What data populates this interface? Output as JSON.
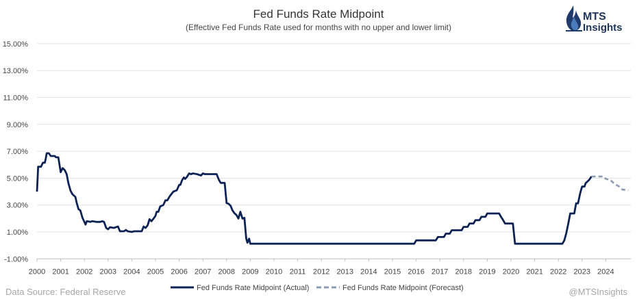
{
  "brand": {
    "line1": "MTS",
    "line2": "Insights",
    "accent": "#1f3a6b"
  },
  "footer": {
    "source": "Data Source: Federal Reserve",
    "handle": "@MTSInsights"
  },
  "chart_data": {
    "type": "line",
    "title": "Fed Funds Rate Midpoint",
    "subtitle": "(Effective Fed Funds Rate used for months with no upper and lower limit)",
    "xlabel": "",
    "ylabel": "",
    "x_ticks": [
      "2000",
      "2001",
      "2002",
      "2003",
      "2004",
      "2005",
      "2006",
      "2007",
      "2008",
      "2009",
      "2010",
      "2011",
      "2012",
      "2013",
      "2014",
      "2015",
      "2016",
      "2017",
      "2018",
      "2019",
      "2020",
      "2021",
      "2022",
      "2023",
      "2024"
    ],
    "y_ticks": [
      "15.00%",
      "13.00%",
      "11.00%",
      "9.00%",
      "7.00%",
      "5.00%",
      "3.00%",
      "1.00%",
      "-1.00%"
    ],
    "xlim": [
      2000.0,
      2024.95
    ],
    "ylim": [
      -1.0,
      16.0
    ],
    "grid": "horizontal",
    "legend": "bottom",
    "series": [
      {
        "name": "Fed Funds Rate Midpoint (Actual)",
        "color": "#0c2255",
        "style": "solid",
        "points": [
          [
            2000.0,
            4.0
          ],
          [
            2000.05,
            5.85
          ],
          [
            2000.17,
            5.85
          ],
          [
            2000.25,
            6.15
          ],
          [
            2000.33,
            6.15
          ],
          [
            2000.37,
            6.45
          ],
          [
            2000.41,
            6.85
          ],
          [
            2000.5,
            6.85
          ],
          [
            2000.58,
            6.65
          ],
          [
            2000.75,
            6.65
          ],
          [
            2000.8,
            6.55
          ],
          [
            2000.9,
            6.55
          ],
          [
            2000.95,
            6.0
          ],
          [
            2001.0,
            5.45
          ],
          [
            2001.08,
            5.75
          ],
          [
            2001.17,
            5.6
          ],
          [
            2001.25,
            5.3
          ],
          [
            2001.33,
            4.6
          ],
          [
            2001.42,
            4.05
          ],
          [
            2001.5,
            3.8
          ],
          [
            2001.62,
            3.6
          ],
          [
            2001.67,
            3.2
          ],
          [
            2001.75,
            2.7
          ],
          [
            2001.83,
            2.6
          ],
          [
            2001.92,
            2.05
          ],
          [
            2002.0,
            1.75
          ],
          [
            2002.05,
            1.55
          ],
          [
            2002.1,
            1.8
          ],
          [
            2002.25,
            1.75
          ],
          [
            2002.33,
            1.8
          ],
          [
            2002.5,
            1.75
          ],
          [
            2002.67,
            1.75
          ],
          [
            2002.75,
            1.8
          ],
          [
            2002.83,
            1.75
          ],
          [
            2002.92,
            1.3
          ],
          [
            2003.0,
            1.2
          ],
          [
            2003.08,
            1.35
          ],
          [
            2003.25,
            1.3
          ],
          [
            2003.42,
            1.4
          ],
          [
            2003.5,
            1.05
          ],
          [
            2003.67,
            1.05
          ],
          [
            2003.75,
            1.15
          ],
          [
            2003.83,
            1.05
          ],
          [
            2004.0,
            1.0
          ],
          [
            2004.1,
            1.05
          ],
          [
            2004.42,
            1.05
          ],
          [
            2004.5,
            1.4
          ],
          [
            2004.58,
            1.3
          ],
          [
            2004.67,
            1.5
          ],
          [
            2004.75,
            1.95
          ],
          [
            2004.83,
            1.8
          ],
          [
            2004.92,
            2.0
          ],
          [
            2005.0,
            2.2
          ],
          [
            2005.05,
            2.5
          ],
          [
            2005.12,
            2.5
          ],
          [
            2005.2,
            2.9
          ],
          [
            2005.33,
            3.0
          ],
          [
            2005.42,
            3.35
          ],
          [
            2005.5,
            3.35
          ],
          [
            2005.6,
            3.65
          ],
          [
            2005.75,
            4.0
          ],
          [
            2005.9,
            4.1
          ],
          [
            2006.0,
            4.5
          ],
          [
            2006.05,
            4.5
          ],
          [
            2006.12,
            4.85
          ],
          [
            2006.2,
            5.05
          ],
          [
            2006.25,
            4.95
          ],
          [
            2006.33,
            5.1
          ],
          [
            2006.42,
            5.35
          ],
          [
            2006.5,
            5.3
          ],
          [
            2006.58,
            5.35
          ],
          [
            2006.75,
            5.3
          ],
          [
            2006.92,
            5.2
          ],
          [
            2007.0,
            5.35
          ],
          [
            2007.08,
            5.3
          ],
          [
            2007.58,
            5.3
          ],
          [
            2007.67,
            4.9
          ],
          [
            2007.75,
            4.65
          ],
          [
            2007.92,
            4.65
          ],
          [
            2008.0,
            3.15
          ],
          [
            2008.08,
            3.1
          ],
          [
            2008.17,
            2.95
          ],
          [
            2008.25,
            2.6
          ],
          [
            2008.33,
            2.4
          ],
          [
            2008.42,
            2.25
          ],
          [
            2008.5,
            2.0
          ],
          [
            2008.58,
            2.5
          ],
          [
            2008.67,
            2.0
          ],
          [
            2008.75,
            2.05
          ],
          [
            2008.83,
            0.5
          ],
          [
            2008.88,
            0.2
          ],
          [
            2008.95,
            0.5
          ],
          [
            2009.0,
            0.125
          ],
          [
            2015.92,
            0.125
          ],
          [
            2016.0,
            0.375
          ],
          [
            2016.83,
            0.375
          ],
          [
            2016.92,
            0.625
          ],
          [
            2017.17,
            0.625
          ],
          [
            2017.25,
            0.875
          ],
          [
            2017.42,
            0.875
          ],
          [
            2017.5,
            1.125
          ],
          [
            2017.92,
            1.125
          ],
          [
            2018.0,
            1.375
          ],
          [
            2018.17,
            1.375
          ],
          [
            2018.25,
            1.625
          ],
          [
            2018.42,
            1.625
          ],
          [
            2018.5,
            1.875
          ],
          [
            2018.67,
            1.875
          ],
          [
            2018.75,
            2.125
          ],
          [
            2018.92,
            2.125
          ],
          [
            2019.0,
            2.375
          ],
          [
            2019.5,
            2.375
          ],
          [
            2019.58,
            2.125
          ],
          [
            2019.67,
            1.875
          ],
          [
            2019.75,
            1.625
          ],
          [
            2020.08,
            1.625
          ],
          [
            2020.17,
            0.125
          ],
          [
            2022.17,
            0.125
          ],
          [
            2022.25,
            0.375
          ],
          [
            2022.33,
            0.875
          ],
          [
            2022.42,
            1.625
          ],
          [
            2022.5,
            2.375
          ],
          [
            2022.67,
            2.375
          ],
          [
            2022.75,
            3.125
          ],
          [
            2022.83,
            3.125
          ],
          [
            2022.92,
            3.875
          ],
          [
            2023.0,
            4.375
          ],
          [
            2023.1,
            4.375
          ],
          [
            2023.15,
            4.625
          ],
          [
            2023.3,
            4.875
          ],
          [
            2023.4,
            5.125
          ]
        ]
      },
      {
        "name": "Fed Funds Rate Midpoint (Forecast)",
        "color": "#8a9bb3",
        "style": "dashed",
        "points": [
          [
            2023.4,
            5.125
          ],
          [
            2023.9,
            5.125
          ],
          [
            2024.0,
            4.95
          ],
          [
            2024.2,
            4.85
          ],
          [
            2024.35,
            4.6
          ],
          [
            2024.55,
            4.4
          ],
          [
            2024.7,
            4.15
          ],
          [
            2024.95,
            4.1
          ]
        ]
      }
    ]
  }
}
